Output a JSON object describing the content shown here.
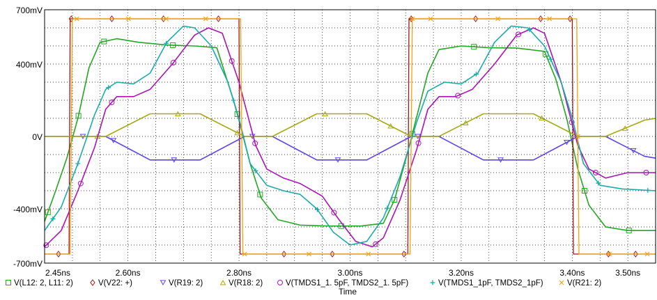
{
  "chart_data": {
    "type": "line",
    "xlabel": "Time",
    "ylabel": "",
    "xlim": [
      2.45,
      3.55
    ],
    "ylim": [
      -700,
      700
    ],
    "x_ticks": [
      {
        "value": 2.45,
        "label": "2.45ns"
      },
      {
        "value": 2.6,
        "label": "2.60ns"
      },
      {
        "value": 2.8,
        "label": "2.80ns"
      },
      {
        "value": 3.0,
        "label": "3.00ns"
      },
      {
        "value": 3.2,
        "label": "3.20ns"
      },
      {
        "value": 3.4,
        "label": "3.40ns"
      },
      {
        "value": 3.5,
        "label": "3.50ns"
      }
    ],
    "y_ticks": [
      {
        "value": 700,
        "label": "700mV"
      },
      {
        "value": 400,
        "label": "400mV"
      },
      {
        "value": 0,
        "label": "0V"
      },
      {
        "value": -400,
        "label": "-400mV"
      },
      {
        "value": -700,
        "label": "-700mV"
      }
    ],
    "grid": true,
    "legend_position": "bottom",
    "series": [
      {
        "name": "V(L12:2,L11:2)",
        "legend": "V(L12: 2, L11: 2)",
        "color": "#22a722",
        "marker": "square",
        "points": [
          [
            2.45,
            -470
          ],
          [
            2.47,
            -300
          ],
          [
            2.49,
            -120
          ],
          [
            2.51,
            100
          ],
          [
            2.53,
            380
          ],
          [
            2.55,
            520
          ],
          [
            2.58,
            540
          ],
          [
            2.62,
            520
          ],
          [
            2.67,
            505
          ],
          [
            2.72,
            500
          ],
          [
            2.76,
            490
          ],
          [
            2.79,
            200
          ],
          [
            2.8,
            90
          ],
          [
            2.82,
            -150
          ],
          [
            2.84,
            -340
          ],
          [
            2.87,
            -460
          ],
          [
            2.91,
            -490
          ],
          [
            2.96,
            -495
          ],
          [
            3.02,
            -495
          ],
          [
            3.06,
            -480
          ],
          [
            3.08,
            -350
          ],
          [
            3.1,
            -130
          ],
          [
            3.12,
            110
          ],
          [
            3.14,
            350
          ],
          [
            3.16,
            480
          ],
          [
            3.2,
            500
          ],
          [
            3.25,
            490
          ],
          [
            3.3,
            488
          ],
          [
            3.35,
            470
          ],
          [
            3.37,
            320
          ],
          [
            3.39,
            100
          ],
          [
            3.41,
            -180
          ],
          [
            3.43,
            -380
          ],
          [
            3.46,
            -500
          ],
          [
            3.5,
            -520
          ],
          [
            3.55,
            -520
          ]
        ],
        "markers_at": [
          2.456,
          2.511,
          2.557,
          2.681,
          2.797,
          2.838,
          2.984,
          3.08,
          3.112,
          3.223,
          3.352,
          3.422,
          3.502
        ]
      },
      {
        "name": "V(V22:+)",
        "legend": "V(V22: +)",
        "color": "#a31515",
        "marker": "diamond",
        "points": [
          [
            2.45,
            -650
          ],
          [
            2.494,
            -650
          ],
          [
            2.496,
            650
          ],
          [
            2.8,
            650
          ],
          [
            2.802,
            -650
          ],
          [
            3.104,
            -650
          ],
          [
            3.106,
            650
          ],
          [
            3.4,
            650
          ],
          [
            3.402,
            -650
          ],
          [
            3.55,
            -650
          ]
        ],
        "markers_at": [
          2.475,
          2.498,
          2.571,
          2.664,
          2.763,
          2.881,
          2.968,
          3.097,
          3.11,
          3.226,
          3.343,
          3.396,
          3.465,
          3.514
        ]
      },
      {
        "name": "V(R19:2)",
        "legend": "V(R19: 2)",
        "color": "#5b43f1",
        "marker": "triangle-down",
        "points": [
          [
            2.45,
            0
          ],
          [
            2.56,
            0
          ],
          [
            2.64,
            -130
          ],
          [
            2.73,
            -130
          ],
          [
            2.81,
            0
          ],
          [
            2.86,
            0
          ],
          [
            2.94,
            -130
          ],
          [
            3.03,
            -130
          ],
          [
            3.11,
            0
          ],
          [
            3.16,
            0
          ],
          [
            3.24,
            -130
          ],
          [
            3.33,
            -130
          ],
          [
            3.41,
            0
          ],
          [
            3.46,
            0
          ],
          [
            3.53,
            -110
          ],
          [
            3.55,
            -120
          ]
        ],
        "markers_at": [
          2.519,
          2.574,
          2.683,
          2.824,
          2.978,
          3.122,
          3.271,
          3.39,
          3.51
        ]
      },
      {
        "name": "V(R18:2)",
        "legend": "V(R18: 2)",
        "color": "#a8a812",
        "marker": "triangle-up",
        "points": [
          [
            2.45,
            0
          ],
          [
            2.56,
            0
          ],
          [
            2.64,
            125
          ],
          [
            2.73,
            125
          ],
          [
            2.81,
            0
          ],
          [
            2.86,
            0
          ],
          [
            2.94,
            125
          ],
          [
            3.03,
            125
          ],
          [
            3.11,
            0
          ],
          [
            3.16,
            0
          ],
          [
            3.24,
            125
          ],
          [
            3.33,
            125
          ],
          [
            3.41,
            0
          ],
          [
            3.46,
            0
          ],
          [
            3.53,
            90
          ],
          [
            3.55,
            100
          ]
        ],
        "markers_at": [
          2.545,
          2.69,
          2.797,
          2.955,
          3.073,
          3.208,
          3.345,
          3.495
        ]
      },
      {
        "name": "V(TMDS1_1.5pF,TMDS2_1.5pF)",
        "legend": "V(TMDS1_1. 5pF, TMDS2_1. 5pF)",
        "color": "#a914b3",
        "marker": "circle",
        "points": [
          [
            2.45,
            -610
          ],
          [
            2.48,
            -520
          ],
          [
            2.51,
            -300
          ],
          [
            2.54,
            -60
          ],
          [
            2.56,
            150
          ],
          [
            2.58,
            220
          ],
          [
            2.61,
            220
          ],
          [
            2.64,
            260
          ],
          [
            2.68,
            400
          ],
          [
            2.72,
            560
          ],
          [
            2.745,
            600
          ],
          [
            2.77,
            570
          ],
          [
            2.8,
            300
          ],
          [
            2.83,
            -50
          ],
          [
            2.85,
            -180
          ],
          [
            2.88,
            -230
          ],
          [
            2.91,
            -260
          ],
          [
            2.95,
            -330
          ],
          [
            2.98,
            -460
          ],
          [
            3.01,
            -580
          ],
          [
            3.04,
            -610
          ],
          [
            3.06,
            -560
          ],
          [
            3.09,
            -350
          ],
          [
            3.12,
            -70
          ],
          [
            3.14,
            150
          ],
          [
            3.16,
            220
          ],
          [
            3.19,
            220
          ],
          [
            3.22,
            260
          ],
          [
            3.26,
            400
          ],
          [
            3.3,
            560
          ],
          [
            3.33,
            600
          ],
          [
            3.35,
            570
          ],
          [
            3.38,
            300
          ],
          [
            3.41,
            -50
          ],
          [
            3.43,
            -180
          ],
          [
            3.46,
            -230
          ],
          [
            3.5,
            -200
          ],
          [
            3.55,
            -200
          ]
        ],
        "markers_at": [
          2.453,
          2.515,
          2.571,
          2.682,
          2.787,
          2.829,
          2.971,
          3.046,
          3.123,
          3.194,
          3.303,
          3.399,
          3.442,
          3.533
        ]
      },
      {
        "name": "V(TMDS1_1pF,TMDS2_1pF)",
        "legend": "V(TMDS1_1pF, TMDS2_1pF)",
        "color": "#1aaaaa",
        "marker": "plus",
        "points": [
          [
            2.45,
            -520
          ],
          [
            2.48,
            -390
          ],
          [
            2.51,
            -150
          ],
          [
            2.54,
            120
          ],
          [
            2.56,
            260
          ],
          [
            2.58,
            300
          ],
          [
            2.61,
            290
          ],
          [
            2.64,
            350
          ],
          [
            2.67,
            520
          ],
          [
            2.7,
            610
          ],
          [
            2.72,
            600
          ],
          [
            2.75,
            500
          ],
          [
            2.78,
            300
          ],
          [
            2.8,
            100
          ],
          [
            2.82,
            -150
          ],
          [
            2.85,
            -270
          ],
          [
            2.88,
            -300
          ],
          [
            2.91,
            -320
          ],
          [
            2.94,
            -400
          ],
          [
            2.97,
            -530
          ],
          [
            3.0,
            -600
          ],
          [
            3.03,
            -580
          ],
          [
            3.06,
            -450
          ],
          [
            3.09,
            -220
          ],
          [
            3.12,
            80
          ],
          [
            3.14,
            250
          ],
          [
            3.17,
            300
          ],
          [
            3.2,
            290
          ],
          [
            3.23,
            350
          ],
          [
            3.26,
            520
          ],
          [
            3.29,
            610
          ],
          [
            3.32,
            600
          ],
          [
            3.35,
            500
          ],
          [
            3.38,
            300
          ],
          [
            3.4,
            100
          ],
          [
            3.42,
            -150
          ],
          [
            3.45,
            -270
          ],
          [
            3.49,
            -290
          ],
          [
            3.55,
            -300
          ]
        ],
        "markers_at": [
          2.465,
          2.51,
          2.565,
          2.669,
          2.79,
          2.83,
          2.941,
          3.067,
          3.112,
          3.227,
          3.323,
          3.361,
          3.447,
          3.536
        ]
      },
      {
        "name": "V(R21:2)",
        "legend": "V(R21: 2)",
        "color": "#f2a20c",
        "marker": "x",
        "points": [
          [
            2.45,
            -650
          ],
          [
            2.496,
            -650
          ],
          [
            2.5,
            650
          ],
          [
            2.803,
            650
          ],
          [
            2.807,
            -650
          ],
          [
            3.108,
            -650
          ],
          [
            3.112,
            650
          ],
          [
            3.408,
            650
          ],
          [
            3.412,
            -650
          ],
          [
            3.55,
            -650
          ]
        ],
        "markers_at": [
          2.508,
          2.601,
          2.669,
          2.74,
          2.81,
          2.926,
          3.033,
          3.112,
          3.145,
          3.266,
          3.359,
          3.41,
          3.467,
          3.535
        ]
      }
    ]
  }
}
